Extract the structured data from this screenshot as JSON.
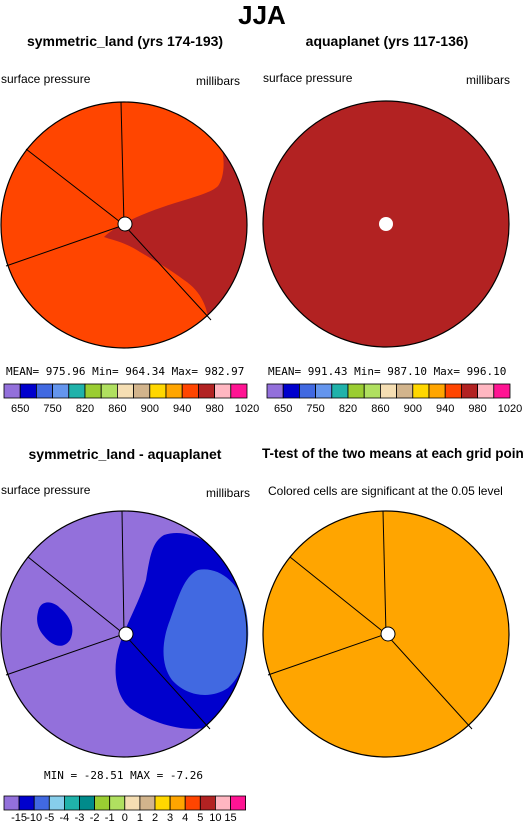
{
  "header": {
    "title": "JJA"
  },
  "panels": [
    {
      "title": "symmetric_land (yrs 174-193)",
      "left_label": "surface pressure",
      "right_label": "millibars",
      "stats": "MEAN= 975.96  Min= 964.34  Max= 982.97"
    },
    {
      "title": "aquaplanet (yrs 117-136)",
      "left_label": "surface pressure",
      "right_label": "millibars",
      "stats": "MEAN= 991.43  Min= 987.10  Max= 996.10"
    },
    {
      "title": "symmetric_land - aquaplanet",
      "left_label": "surface pressure",
      "right_label": "millibars",
      "stats": "MIN = -28.51  MAX =  -7.26"
    },
    {
      "title": "T-test of the two means at each grid point",
      "left_label": "Colored cells are significant at the 0.05 level",
      "right_label": "",
      "stats": ""
    }
  ],
  "colorbar_pressure": {
    "colors": [
      "#9370db",
      "#0000cd",
      "#4169e1",
      "#6495ed",
      "#20b2aa",
      "#9acd32",
      "#b0e060",
      "#f5deb3",
      "#d2b48c",
      "#ffd700",
      "#ffa500",
      "#ff4500",
      "#b22222",
      "#ffb6c1",
      "#ff1493"
    ],
    "labels": [
      "650",
      "750",
      "820",
      "860",
      "900",
      "940",
      "980",
      "1020"
    ]
  },
  "colorbar_diff": {
    "colors": [
      "#9370db",
      "#0000cd",
      "#4169e1",
      "#87ceeb",
      "#20b2aa",
      "#008b8b",
      "#9acd32",
      "#b0e060",
      "#f5deb3",
      "#d2b48c",
      "#ffd700",
      "#ffa500",
      "#ff4500",
      "#b22222",
      "#ffb6c1",
      "#ff1493"
    ],
    "labels": [
      "-15",
      "-10",
      "-5",
      "-4",
      "-3",
      "-2",
      "-1",
      "0",
      "1",
      "2",
      "3",
      "4",
      "5",
      "10",
      "15"
    ]
  },
  "map_colors": {
    "land_low": "#ff4500",
    "land_high": "#b22222",
    "aqua": "#b22222",
    "diff_outer": "#9370db",
    "diff_mid": "#0000cd",
    "diff_core": "#4169e1",
    "ttest": "#ffa500"
  },
  "chart_data": [
    {
      "type": "heatmap",
      "title": "symmetric_land (yrs 174-193)",
      "variable": "surface pressure",
      "units": "millibars",
      "mean": 975.96,
      "min": 964.34,
      "max": 982.97
    },
    {
      "type": "heatmap",
      "title": "aquaplanet (yrs 117-136)",
      "variable": "surface pressure",
      "units": "millibars",
      "mean": 991.43,
      "min": 987.1,
      "max": 996.1
    },
    {
      "type": "heatmap",
      "title": "symmetric_land - aquaplanet",
      "variable": "surface pressure",
      "units": "millibars",
      "min": -28.51,
      "max": -7.26
    },
    {
      "type": "heatmap",
      "title": "T-test of the two means at each grid point",
      "note": "Colored cells are significant at the 0.05 level"
    }
  ]
}
